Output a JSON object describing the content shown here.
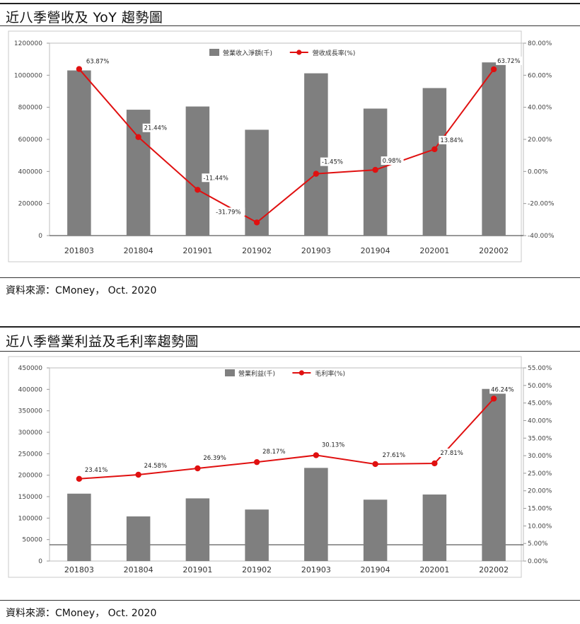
{
  "charts": [
    {
      "heading": "近八季營收及 YoY 趨勢圖",
      "source": "資料來源：CMoney， Oct. 2020",
      "chart_data": {
        "type": "bar",
        "title": "",
        "categories": [
          "201803",
          "201804",
          "201901",
          "201902",
          "201903",
          "201904",
          "202001",
          "202002"
        ],
        "series": [
          {
            "name": "營業收入淨額(千)",
            "type": "bar",
            "axis": "left",
            "values": [
              1030000,
              785000,
              805000,
              660000,
              1012000,
              792000,
              920000,
              1080000
            ],
            "color": "#7f7f7f"
          },
          {
            "name": "營收成長率(%)",
            "type": "line",
            "axis": "right",
            "values": [
              63.87,
              21.44,
              -11.44,
              -31.79,
              -1.45,
              0.98,
              13.84,
              63.72
            ],
            "color": "#e01010"
          }
        ],
        "data_labels": [
          "63.87%",
          "21.44%",
          "-11.44%",
          "-31.79%",
          "-1.45%",
          "0.98%",
          "13.84%",
          "63.72%"
        ],
        "y_left": {
          "min": 0,
          "max": 1200000,
          "ticks": [
            "0",
            "200000",
            "400000",
            "600000",
            "800000",
            "1000000",
            "1200000"
          ]
        },
        "y_right": {
          "min": -40,
          "max": 80,
          "ticks": [
            "-40.00%",
            "-20.00%",
            "0.00%",
            "20.00%",
            "40.00%",
            "60.00%",
            "80.00%"
          ]
        },
        "legend_position": "top-center",
        "grid": false
      }
    },
    {
      "heading": "近八季營業利益及毛利率趨勢圖",
      "source": "資料來源：CMoney， Oct. 2020",
      "chart_data": {
        "type": "bar",
        "title": "",
        "categories": [
          "201803",
          "201804",
          "201901",
          "201902",
          "201903",
          "201904",
          "202001",
          "202002"
        ],
        "series": [
          {
            "name": "營業利益(千)",
            "type": "bar",
            "axis": "left",
            "values": [
              157000,
              104000,
              146000,
              120000,
              217000,
              143000,
              155000,
              401000
            ],
            "color": "#7f7f7f"
          },
          {
            "name": "毛利率(%)",
            "type": "line",
            "axis": "right",
            "values": [
              23.41,
              24.58,
              26.39,
              28.17,
              30.13,
              27.61,
              27.81,
              46.24
            ],
            "color": "#e01010"
          }
        ],
        "data_labels": [
          "23.41%",
          "24.58%",
          "26.39%",
          "28.17%",
          "30.13%",
          "27.61%",
          "27.81%",
          "46.24%"
        ],
        "y_left": {
          "min": 0,
          "max": 450000,
          "ticks": [
            "0",
            "50000",
            "100000",
            "150000",
            "200000",
            "250000",
            "300000",
            "350000",
            "400000",
            "450000"
          ]
        },
        "y_right": {
          "min": 0,
          "max": 55,
          "ticks": [
            "0.00%",
            "5.00%",
            "10.00%",
            "15.00%",
            "20.00%",
            "25.00%",
            "30.00%",
            "35.00%",
            "40.00%",
            "45.00%",
            "50.00%",
            "55.00%"
          ]
        },
        "legend_position": "top-center",
        "grid": false
      }
    }
  ]
}
